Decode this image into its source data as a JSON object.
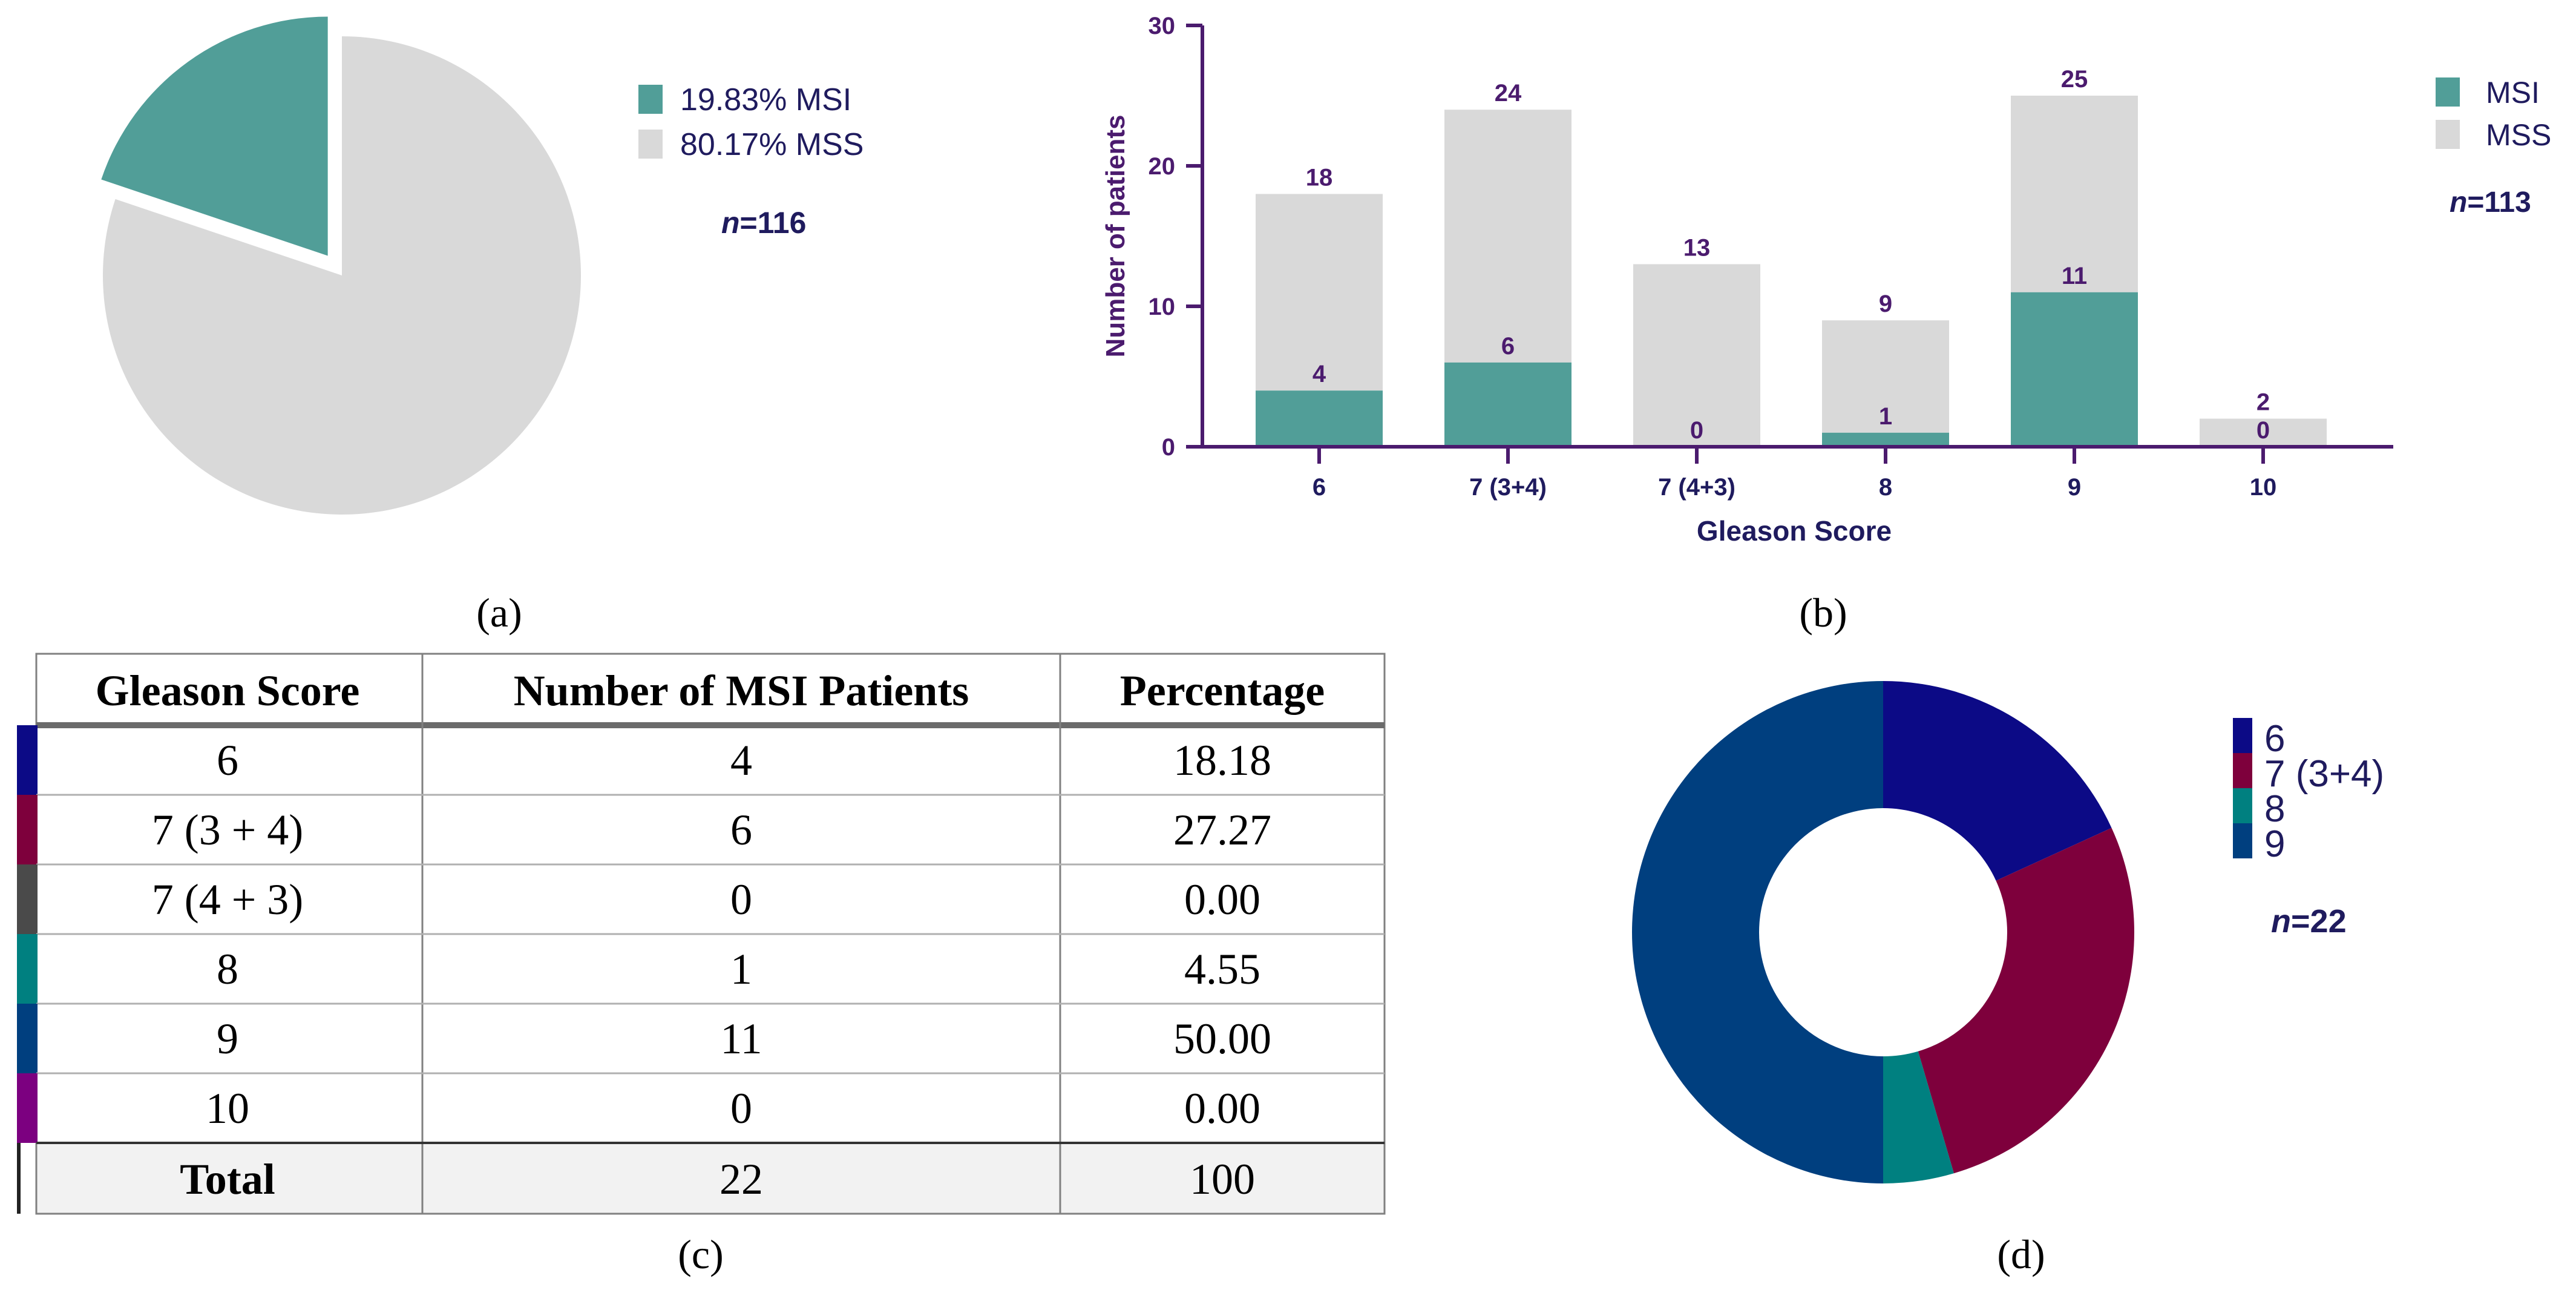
{
  "panel_labels": {
    "a": "(a)",
    "b": "(b)",
    "c": "(c)",
    "d": "(d)"
  },
  "colors": {
    "msi": "#519e98",
    "mss": "#d9d9d9",
    "axis": "#4b1b6e",
    "text_dark": "#1f1b5e",
    "g6": "#0c0a86",
    "g7_34": "#7e003c",
    "g7_43": "#4a4a4a",
    "g8": "#008080",
    "g9": "#003f7f",
    "g10": "#7c0080"
  },
  "chart_data": [
    {
      "type": "pie",
      "panel": "a",
      "slices": [
        {
          "label": "MSI",
          "value": 19.83,
          "legend": "19.83%  MSI",
          "color": "#519e98",
          "exploded": true
        },
        {
          "label": "MSS",
          "value": 80.17,
          "legend": "80.17%  MSS",
          "color": "#d9d9d9",
          "exploded": false
        }
      ],
      "n_label": "n",
      "n_value": "=116"
    },
    {
      "type": "bar",
      "stacked": true,
      "panel": "b",
      "categories": [
        "6",
        "7 (3+4)",
        "7 (4+3)",
        "8",
        "9",
        "10"
      ],
      "series": [
        {
          "name": "MSI",
          "values": [
            4,
            6,
            0,
            1,
            11,
            0
          ],
          "color": "#519e98"
        },
        {
          "name": "MSS",
          "values": [
            14,
            18,
            13,
            8,
            14,
            2
          ],
          "color": "#d9d9d9"
        }
      ],
      "totals": [
        18,
        24,
        13,
        9,
        25,
        2
      ],
      "xlabel": "Gleason Score",
      "ylabel": "Number of patients",
      "ylim": [
        0,
        30
      ],
      "yticks": [
        0,
        10,
        20,
        30
      ],
      "legend_position": "top-right",
      "n_label": "n",
      "n_value": "=113"
    },
    {
      "type": "table",
      "panel": "c",
      "columns": [
        "Gleason Score",
        "Number of MSI Patients",
        "Percentage"
      ],
      "rows": [
        {
          "score": "6",
          "count": "4",
          "pct": "18.18",
          "color": "#0c0a86"
        },
        {
          "score": "7 (3 + 4)",
          "count": "6",
          "pct": "27.27",
          "color": "#7e003c"
        },
        {
          "score": "7 (4 + 3)",
          "count": "0",
          "pct": "0.00",
          "color": "#4a4a4a"
        },
        {
          "score": "8",
          "count": "1",
          "pct": "4.55",
          "color": "#008080"
        },
        {
          "score": "9",
          "count": "11",
          "pct": "50.00",
          "color": "#003f7f"
        },
        {
          "score": "10",
          "count": "0",
          "pct": "0.00",
          "color": "#7c0080"
        }
      ],
      "total": {
        "label": "Total",
        "count": "22",
        "pct": "100"
      }
    },
    {
      "type": "pie",
      "donut": true,
      "panel": "d",
      "slices": [
        {
          "label": "6",
          "value": 4,
          "color": "#0c0a86"
        },
        {
          "label": "7 (3+4)",
          "value": 6,
          "color": "#7e003c"
        },
        {
          "label": "8",
          "value": 1,
          "color": "#008080"
        },
        {
          "label": "9",
          "value": 11,
          "color": "#003f7f"
        }
      ],
      "n_label": "n",
      "n_value": "=22"
    }
  ]
}
